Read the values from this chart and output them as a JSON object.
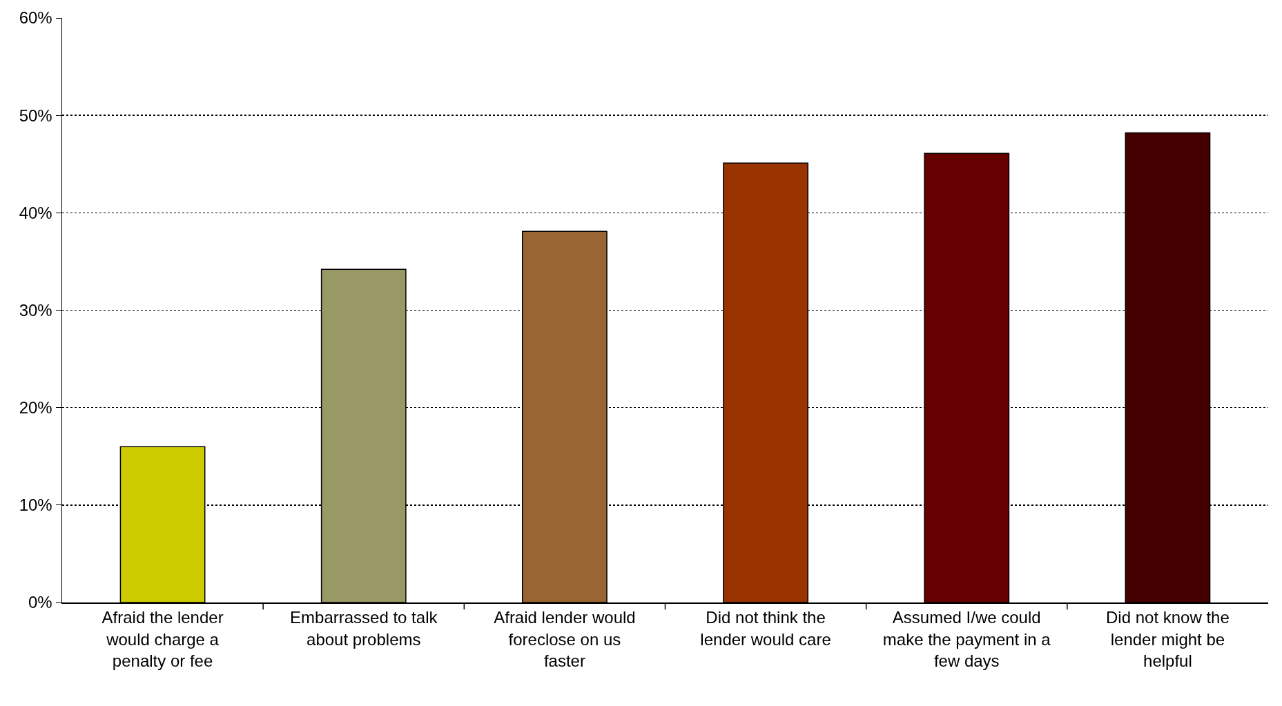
{
  "chart_data": {
    "type": "bar",
    "categories": [
      "Afraid the lender would charge a penalty or fee",
      "Embarrassed to talk about problems",
      "Afraid lender would foreclose on us faster",
      "Did not think the lender would care",
      "Assumed I/we could make the payment in a few days",
      "Did not know the lender might be helpful"
    ],
    "values": [
      16,
      34.2,
      38.1,
      45.1,
      46.1,
      48.2
    ],
    "colors": [
      "#cccc00",
      "#999966",
      "#996633",
      "#993300",
      "#660000",
      "#440000"
    ],
    "ylim": [
      0,
      60
    ],
    "yticks": [
      {
        "value": 0,
        "label": "0%"
      },
      {
        "value": 10,
        "label": "10%"
      },
      {
        "value": 20,
        "label": "20%"
      },
      {
        "value": 30,
        "label": "30%"
      },
      {
        "value": 40,
        "label": "40%"
      },
      {
        "value": 50,
        "label": "50%"
      },
      {
        "value": 60,
        "label": "60%"
      }
    ],
    "grid": "y"
  }
}
